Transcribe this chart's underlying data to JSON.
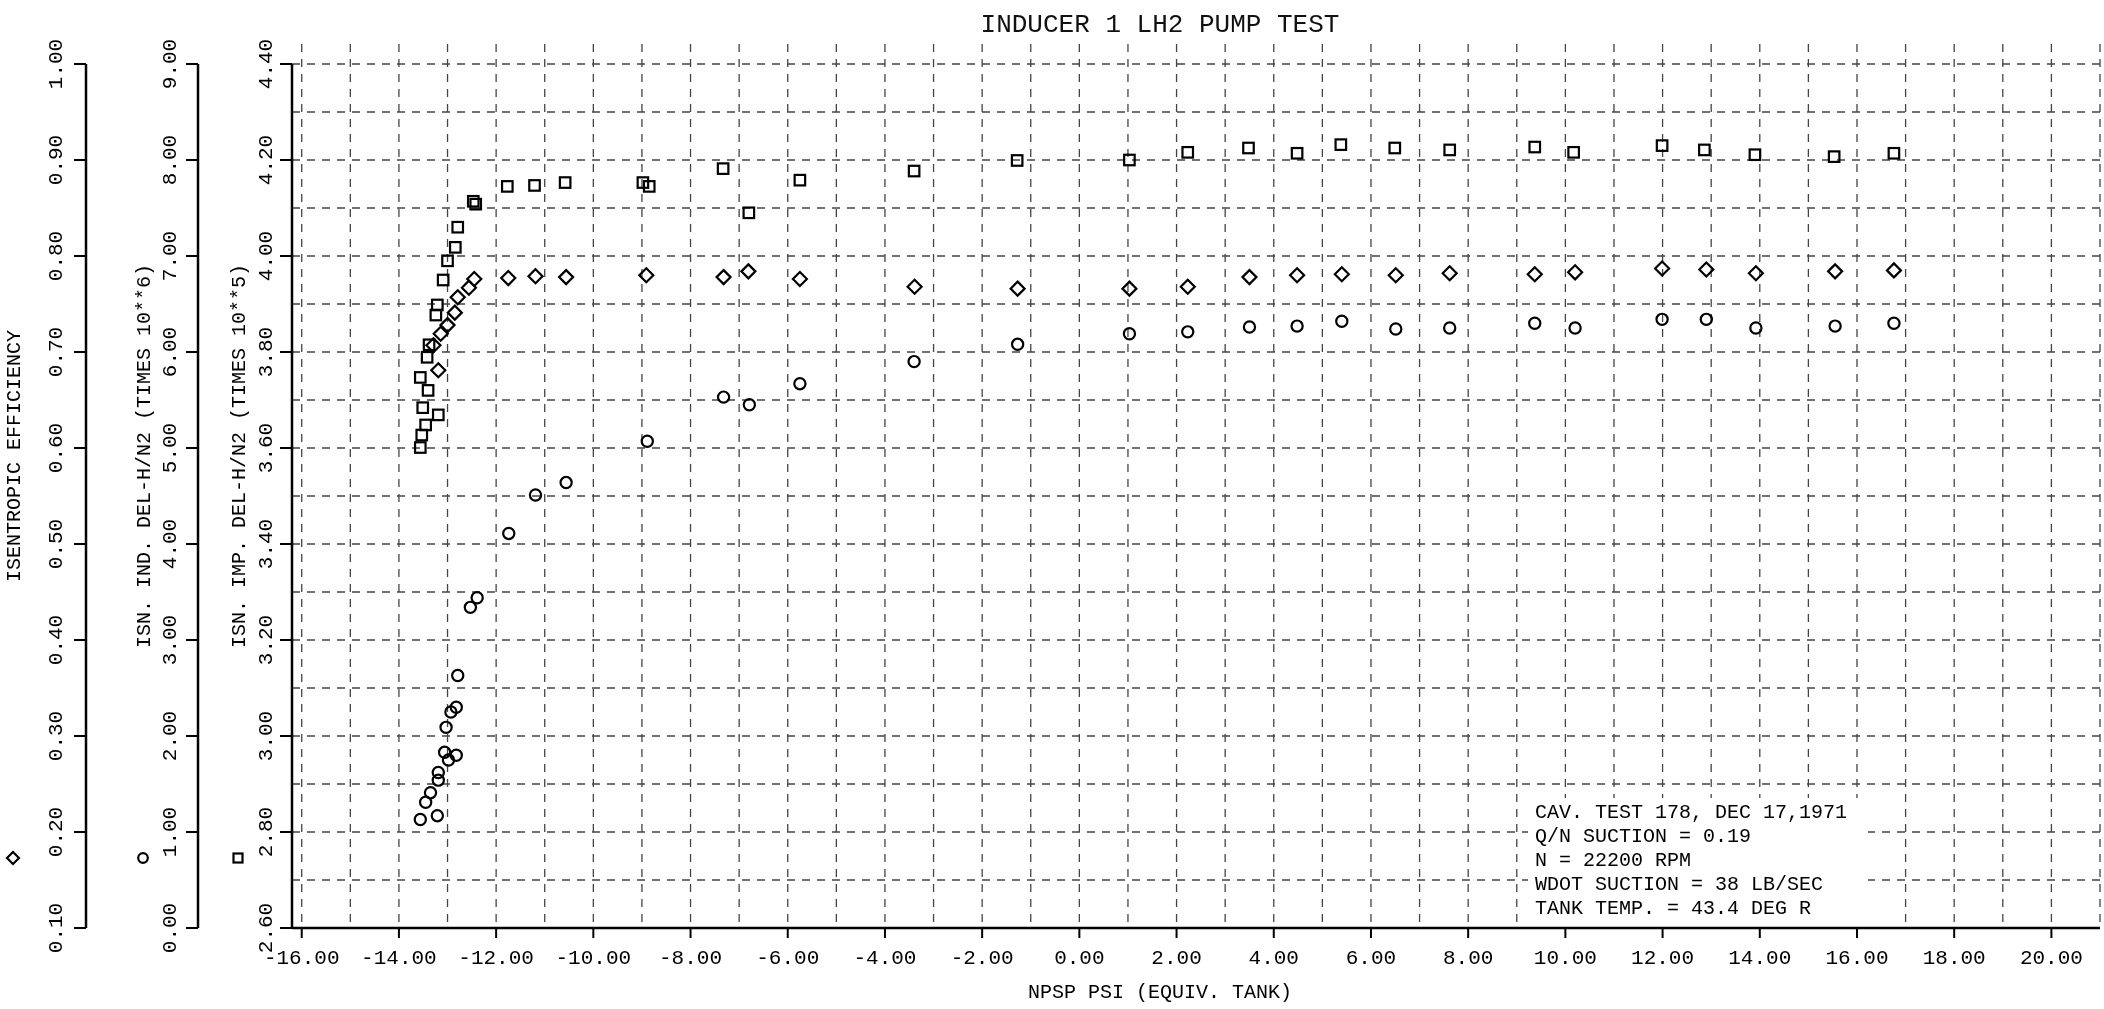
{
  "chart_data": {
    "type": "scatter",
    "title": "INDUCER 1 LH2 PUMP TEST",
    "xlabel": "NPSP PSI (EQUIV. TANK)",
    "ylabel": "ISENTROPIC EFFICIENCY",
    "y2label": "ISN. IND. DEL-H/N2 (TIMES 10**6)",
    "y3label": "ISN. IMP. DEL-H/N2 (TIMES 10**5)",
    "annotations": [
      "CAV. TEST 178, DEC 17,1971",
      "Q/N SUCTION = 0.19",
      "N = 22200 RPM",
      "WDOT SUCTION = 38 LB/SEC",
      "TANK TEMP. = 43.4 DEG R"
    ],
    "xlim": [
      -16.2,
      21
    ],
    "xticks": [
      {
        "value": -16,
        "label": "-16.00"
      },
      {
        "value": -14,
        "label": "-14.00"
      },
      {
        "value": -12,
        "label": "-12.00"
      },
      {
        "value": -10,
        "label": "-10.00"
      },
      {
        "value": -8,
        "label": "-8.00"
      },
      {
        "value": -6,
        "label": "-6.00"
      },
      {
        "value": -4,
        "label": "-4.00"
      },
      {
        "value": -2,
        "label": "-2.00"
      },
      {
        "value": 0,
        "label": "0.00"
      },
      {
        "value": 2,
        "label": "2.00"
      },
      {
        "value": 4,
        "label": "4.00"
      },
      {
        "value": 6,
        "label": "6.00"
      },
      {
        "value": 8,
        "label": "8.00"
      },
      {
        "value": 10,
        "label": "10.00"
      },
      {
        "value": 12,
        "label": "12.00"
      },
      {
        "value": 14,
        "label": "14.00"
      },
      {
        "value": 16,
        "label": "16.00"
      },
      {
        "value": 18,
        "label": "18.00"
      },
      {
        "value": 20,
        "label": "20.00"
      }
    ],
    "ylim": [
      0.1,
      1.0
    ],
    "yticks": [
      {
        "value": 0.1,
        "label": "0.10"
      },
      {
        "value": 0.2,
        "label": "0.20"
      },
      {
        "value": 0.3,
        "label": "0.30"
      },
      {
        "value": 0.4,
        "label": "0.40"
      },
      {
        "value": 0.5,
        "label": "0.50"
      },
      {
        "value": 0.6,
        "label": "0.60"
      },
      {
        "value": 0.7,
        "label": "0.70"
      },
      {
        "value": 0.8,
        "label": "0.80"
      },
      {
        "value": 0.9,
        "label": "0.90"
      },
      {
        "value": 1.0,
        "label": "1.00"
      }
    ],
    "y2lim": [
      0,
      9
    ],
    "y2ticks": [
      {
        "value": 0,
        "label": "0.00"
      },
      {
        "value": 1,
        "label": "1.00"
      },
      {
        "value": 2,
        "label": "2.00"
      },
      {
        "value": 3,
        "label": "3.00"
      },
      {
        "value": 4,
        "label": "4.00"
      },
      {
        "value": 5,
        "label": "5.00"
      },
      {
        "value": 6,
        "label": "6.00"
      },
      {
        "value": 7,
        "label": "7.00"
      },
      {
        "value": 8,
        "label": "8.00"
      },
      {
        "value": 9,
        "label": "9.00"
      }
    ],
    "y3lim": [
      2.6,
      4.4
    ],
    "y3ticks": [
      {
        "value": 2.6,
        "label": "2.60"
      },
      {
        "value": 2.8,
        "label": "2.80"
      },
      {
        "value": 3.0,
        "label": "3.00"
      },
      {
        "value": 3.2,
        "label": "3.20"
      },
      {
        "value": 3.4,
        "label": "3.40"
      },
      {
        "value": 3.6,
        "label": "3.60"
      },
      {
        "value": 3.8,
        "label": "3.80"
      },
      {
        "value": 4.0,
        "label": "4.00"
      },
      {
        "value": 4.2,
        "label": "4.20"
      },
      {
        "value": 4.4,
        "label": "4.40"
      }
    ],
    "grid": true,
    "series": [
      {
        "axis": "y",
        "marker": "diamond",
        "color": "#000000",
        "x": [
          -13.19,
          -13.29,
          -13.14,
          -13.0,
          -12.85,
          -12.79,
          -12.56,
          -12.45,
          -11.75,
          -11.19,
          -10.56,
          -8.91,
          -7.32,
          -6.81,
          -5.75,
          -3.39,
          -1.27,
          1.03,
          2.23,
          3.5,
          4.48,
          5.4,
          6.51,
          7.62,
          9.37,
          10.2,
          11.99,
          12.9,
          13.92,
          15.55,
          16.76
        ],
        "values": [
          0.681,
          0.707,
          0.719,
          0.728,
          0.741,
          0.757,
          0.767,
          0.776,
          0.777,
          0.779,
          0.778,
          0.78,
          0.778,
          0.784,
          0.776,
          0.768,
          0.766,
          0.766,
          0.768,
          0.778,
          0.78,
          0.781,
          0.78,
          0.782,
          0.781,
          0.783,
          0.787,
          0.786,
          0.782,
          0.784,
          0.785
        ]
      },
      {
        "axis": "y2",
        "marker": "circle",
        "color": "#000000",
        "x": [
          -13.56,
          -13.21,
          -13.45,
          -13.35,
          -13.19,
          -13.19,
          -12.98,
          -12.82,
          -13.06,
          -13.03,
          -12.93,
          -12.82,
          -12.79,
          -12.53,
          -12.39,
          -11.74,
          -11.19,
          -10.56,
          -8.89,
          -7.32,
          -6.79,
          -5.75,
          -3.4,
          -1.27,
          1.03,
          2.23,
          3.5,
          4.48,
          5.4,
          6.51,
          7.62,
          9.37,
          10.2,
          11.99,
          12.9,
          13.92,
          15.55,
          16.76
        ],
        "values": [
          1.13,
          1.17,
          1.31,
          1.41,
          1.54,
          1.62,
          1.75,
          1.8,
          1.83,
          2.09,
          2.25,
          2.3,
          2.63,
          3.34,
          3.44,
          4.11,
          4.51,
          4.64,
          5.07,
          5.53,
          5.45,
          5.67,
          5.9,
          6.08,
          6.19,
          6.21,
          6.26,
          6.27,
          6.32,
          6.24,
          6.25,
          6.3,
          6.25,
          6.34,
          6.34,
          6.25,
          6.27,
          6.3
        ]
      },
      {
        "axis": "y3",
        "marker": "square",
        "color": "#000000",
        "x": [
          -13.56,
          -13.53,
          -13.45,
          -13.19,
          -13.51,
          -13.4,
          -13.56,
          -13.42,
          -13.38,
          -13.24,
          -13.21,
          -13.09,
          -13.0,
          -12.84,
          -12.79,
          -12.47,
          -12.42,
          -11.77,
          -11.21,
          -10.58,
          -8.98,
          -8.85,
          -7.33,
          -6.8,
          -5.75,
          -3.4,
          -1.28,
          1.03,
          2.23,
          3.48,
          4.48,
          5.38,
          6.49,
          7.62,
          9.37,
          10.17,
          11.99,
          12.86,
          13.9,
          15.53,
          16.76
        ],
        "values": [
          3.601,
          3.627,
          3.648,
          3.669,
          3.684,
          3.72,
          3.747,
          3.789,
          3.815,
          3.877,
          3.898,
          3.95,
          3.99,
          4.018,
          4.06,
          4.114,
          4.108,
          4.145,
          4.147,
          4.153,
          4.153,
          4.145,
          4.182,
          4.09,
          4.158,
          4.177,
          4.199,
          4.2,
          4.216,
          4.225,
          4.214,
          4.232,
          4.225,
          4.221,
          4.227,
          4.216,
          4.23,
          4.221,
          4.211,
          4.207,
          4.214
        ]
      }
    ]
  }
}
